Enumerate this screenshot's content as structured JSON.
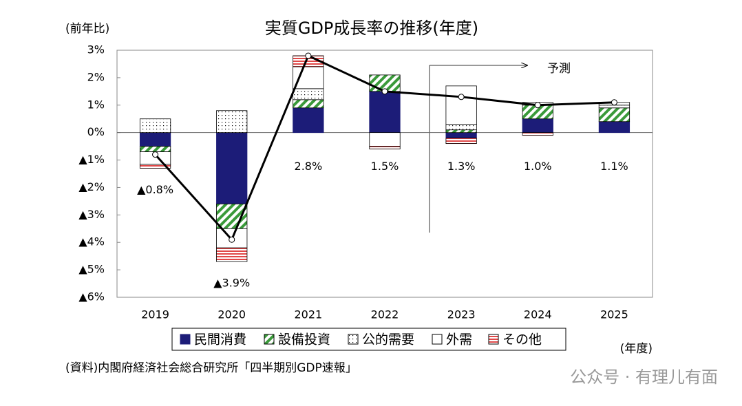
{
  "chart_data": {
    "type": "stacked-bar-line",
    "title": "実質GDP成長率の推移(年度)",
    "y_label": "(前年比)",
    "x_label": "(年度)",
    "source": "(資料)内閣府経済社会総合研究所「四半期別GDP速報」",
    "annotation": "予測",
    "watermark": "公众号 · 有理儿有面",
    "categories": [
      "2019",
      "2020",
      "2021",
      "2022",
      "2023",
      "2024",
      "2025"
    ],
    "series": [
      {
        "name": "民間消費",
        "color": "#1c1c78",
        "pattern": "solid",
        "values": [
          -0.5,
          -2.6,
          0.9,
          1.5,
          -0.2,
          0.5,
          0.4
        ]
      },
      {
        "name": "設備投資",
        "color": "#3a9a3a",
        "pattern": "hatch",
        "values": [
          -0.2,
          -0.9,
          0.3,
          0.6,
          0.1,
          0.5,
          0.5
        ]
      },
      {
        "name": "公的需要",
        "color": "#000000",
        "pattern": "dots",
        "values": [
          0.5,
          0.8,
          0.4,
          0,
          0.2,
          0.1,
          0.1
        ]
      },
      {
        "name": "外需",
        "color": "#ffffff",
        "pattern": "none",
        "values": [
          -0.45,
          -0.7,
          0.8,
          -0.5,
          1.4,
          0,
          0.1
        ]
      },
      {
        "name": "その他",
        "color": "#e04848",
        "pattern": "stripes",
        "values": [
          -0.15,
          -0.5,
          0.4,
          -0.1,
          -0.2,
          -0.1,
          0
        ]
      }
    ],
    "total": {
      "color": "#000000",
      "values": [
        -0.8,
        -3.9,
        2.8,
        1.5,
        1.3,
        1.0,
        1.1
      ],
      "value_labels": [
        "▲0.8%",
        "▲3.9%",
        "2.8%",
        "1.5%",
        "1.3%",
        "1.0%",
        "1.1%"
      ]
    },
    "ylim": [
      -6,
      3
    ],
    "yticks": [
      {
        "value": 3,
        "label": "3%"
      },
      {
        "value": 2,
        "label": "2%"
      },
      {
        "value": 1,
        "label": "1%"
      },
      {
        "value": 0,
        "label": "0%"
      },
      {
        "value": -1,
        "label": "▲1%"
      },
      {
        "value": -2,
        "label": "▲2%"
      },
      {
        "value": -3,
        "label": "▲3%"
      },
      {
        "value": -4,
        "label": "▲4%"
      },
      {
        "value": -5,
        "label": "▲5%"
      },
      {
        "value": -6,
        "label": "▲6%"
      }
    ],
    "grid": false
  }
}
